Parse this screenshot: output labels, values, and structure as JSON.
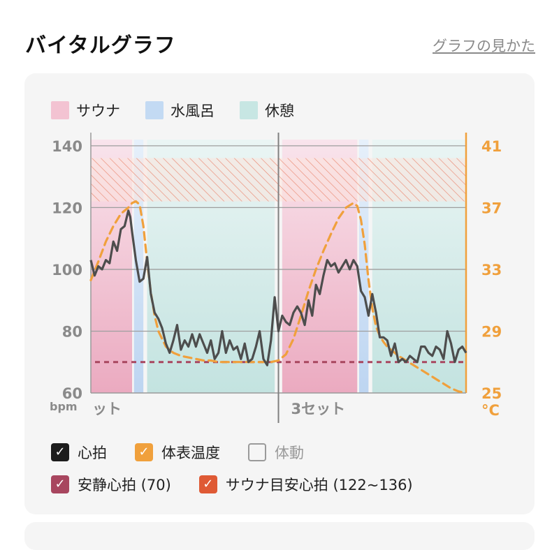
{
  "header": {
    "title": "バイタルグラフ",
    "help_link": "グラフの見かた"
  },
  "phase_legend": [
    {
      "label": "サウナ",
      "color": "#f3c3d2"
    },
    {
      "label": "水風呂",
      "color": "#c3daf3"
    },
    {
      "label": "休憩",
      "color": "#c7e6e3"
    }
  ],
  "toggles": [
    [
      {
        "label": "心拍",
        "checked": true,
        "color": "#1c1c1c"
      },
      {
        "label": "体表温度",
        "checked": true,
        "color": "#f0a03c"
      },
      {
        "label": "体動",
        "checked": false,
        "color": "#9a9a9a"
      }
    ],
    [
      {
        "label": "安静心拍 (70)",
        "checked": true,
        "color": "#a8465f"
      },
      {
        "label": "サウナ目安心拍 (122~136)",
        "checked": true,
        "color": "#df5a35"
      }
    ]
  ],
  "check_mark": "✓",
  "chart_data": {
    "type": "line",
    "left_axis": {
      "unit": "bpm",
      "ticks": [
        60,
        80,
        100,
        120,
        140
      ],
      "range": [
        60,
        142
      ]
    },
    "right_axis": {
      "unit": "°C",
      "ticks": [
        25,
        29,
        33,
        37,
        41
      ],
      "range": [
        25,
        41.4
      ]
    },
    "x_range": [
      0,
      100
    ],
    "set_labels": [
      "ット",
      "3セット"
    ],
    "set_divider_x": 50,
    "phases": [
      {
        "phase": "sauna",
        "start": 0,
        "end": 11
      },
      {
        "phase": "water",
        "start": 11.5,
        "end": 14
      },
      {
        "phase": "rest",
        "start": 15,
        "end": 49
      },
      {
        "phase": "sauna",
        "start": 51,
        "end": 71
      },
      {
        "phase": "water",
        "start": 71.5,
        "end": 74
      },
      {
        "phase": "rest",
        "start": 75,
        "end": 100
      }
    ],
    "sauna_target_band": [
      122,
      136
    ],
    "resting_hr": 70,
    "series": [
      {
        "name": "心拍",
        "axis": "left",
        "x": [
          0,
          1,
          2,
          3,
          4,
          5,
          6,
          7,
          8,
          9,
          10,
          10.5,
          11,
          12,
          13,
          14,
          15,
          16,
          17,
          18,
          19,
          20,
          21,
          22,
          23,
          24,
          25,
          26,
          27,
          28,
          29,
          30,
          31,
          32,
          33,
          34,
          35,
          36,
          37,
          38,
          39,
          40,
          41,
          42,
          43,
          44,
          45,
          46,
          47,
          48,
          49,
          50,
          51,
          52,
          53,
          54,
          55,
          56,
          57,
          58,
          59,
          60,
          61,
          62,
          63,
          64,
          65,
          66,
          67,
          68,
          69,
          70,
          71,
          72,
          73,
          74,
          75,
          76,
          77,
          78,
          79,
          80,
          81,
          82,
          83,
          84,
          85,
          86,
          87,
          88,
          89,
          90,
          91,
          92,
          93,
          94,
          95,
          96,
          97,
          98,
          99,
          100
        ],
        "y": [
          103,
          98,
          101,
          100,
          103,
          102,
          109,
          106,
          113,
          114,
          119,
          117,
          112,
          103,
          96,
          97,
          104,
          92,
          86,
          84,
          81,
          76,
          73,
          77,
          82,
          74,
          77,
          75,
          79,
          75,
          79,
          76,
          73,
          77,
          71,
          73,
          80,
          73,
          77,
          74,
          75,
          71,
          76,
          70,
          71,
          75,
          80,
          71,
          69,
          77,
          91,
          80,
          85,
          83,
          82,
          86,
          88,
          86,
          82,
          90,
          85,
          95,
          92,
          98,
          103,
          101,
          102,
          99,
          101,
          103,
          100,
          103,
          101,
          93,
          91,
          85,
          92,
          86,
          78,
          78,
          77,
          72,
          76,
          70,
          71,
          70,
          72,
          71,
          70,
          75,
          75,
          73,
          72,
          75,
          74,
          71,
          80,
          76,
          70,
          74,
          75,
          73
        ]
      },
      {
        "name": "体表温度",
        "axis": "right",
        "x": [
          0,
          2,
          4,
          6,
          8,
          10,
          11,
          12,
          13,
          14,
          15,
          16,
          17,
          18,
          19,
          20,
          22,
          24,
          26,
          28,
          30,
          32,
          34,
          36,
          38,
          40,
          42,
          44,
          46,
          48,
          50,
          52,
          54,
          56,
          58,
          60,
          62,
          64,
          66,
          68,
          70,
          71,
          72,
          73,
          74,
          75,
          76,
          77,
          78,
          79,
          80,
          82,
          84,
          86,
          88,
          90,
          92,
          94,
          96,
          98,
          100
        ],
        "y": [
          32.3,
          33.5,
          34.8,
          35.8,
          36.6,
          37.0,
          37.3,
          37.4,
          37.2,
          35.8,
          33.5,
          31.5,
          30.0,
          29.0,
          28.5,
          28.0,
          27.6,
          27.4,
          27.3,
          27.2,
          27.1,
          27.1,
          27.0,
          27.0,
          27.0,
          27.0,
          27.0,
          27.0,
          27.0,
          27.0,
          27.1,
          27.5,
          28.5,
          30.0,
          31.6,
          33.0,
          34.2,
          35.3,
          36.3,
          37.0,
          37.3,
          37.1,
          36.2,
          34.6,
          32.3,
          30.5,
          29.3,
          28.7,
          28.3,
          28.0,
          27.8,
          27.4,
          27.1,
          26.8,
          26.5,
          26.2,
          25.9,
          25.6,
          25.3,
          25.1,
          25.0
        ]
      }
    ]
  }
}
